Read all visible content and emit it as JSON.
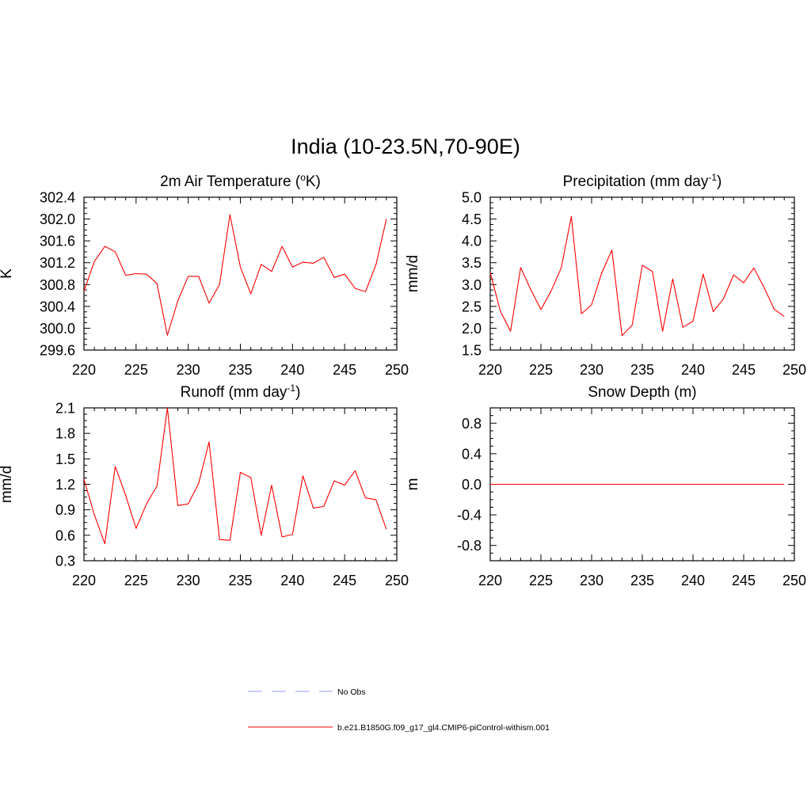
{
  "title": "India (10-23.5N,70-90E)",
  "colors": {
    "model": "#ff0000",
    "obs": "#9999ff",
    "frame": "#000000"
  },
  "legend": [
    {
      "label": "No Obs",
      "style": "dashed",
      "color": "#9999ff"
    },
    {
      "label": "b.e21.B1850G.f09_g17_gl4.CMIP6-piControl-withism.001",
      "style": "solid",
      "color": "#ff0000"
    }
  ],
  "chart_data": [
    {
      "type": "line",
      "title_main": "2m Air Temperature (",
      "title_sup": "o",
      "title_tail": "K)",
      "ylabel": "K",
      "xlim": [
        220,
        250
      ],
      "ylim": [
        299.6,
        302.4
      ],
      "xticks": [
        "220",
        "225",
        "230",
        "235",
        "240",
        "245",
        "250"
      ],
      "yticks": [
        "299.6",
        "300.0",
        "300.4",
        "300.8",
        "301.2",
        "301.6",
        "302.0",
        "302.4"
      ],
      "series": [
        {
          "x": [
            220,
            221,
            222,
            223,
            224,
            225,
            226,
            227,
            228,
            229,
            230,
            231,
            232,
            233,
            234,
            235,
            236,
            237,
            238,
            239,
            240,
            241,
            242,
            243,
            244,
            245,
            246,
            247,
            248,
            249
          ],
          "values": [
            300.68,
            301.22,
            301.5,
            301.4,
            300.97,
            301.0,
            300.99,
            300.82,
            299.87,
            300.5,
            300.95,
            300.95,
            300.46,
            300.8,
            302.08,
            301.12,
            300.63,
            301.17,
            301.04,
            301.5,
            301.12,
            301.21,
            301.19,
            301.3,
            300.93,
            300.99,
            300.73,
            300.67,
            301.16,
            302.0
          ]
        }
      ]
    },
    {
      "type": "line",
      "title_main": "Precipitation (mm day",
      "title_sup": "-1",
      "title_tail": ")",
      "ylabel": "mm/d",
      "xlim": [
        220,
        250
      ],
      "ylim": [
        1.5,
        5.0
      ],
      "xticks": [
        "220",
        "225",
        "230",
        "235",
        "240",
        "245",
        "250"
      ],
      "yticks": [
        "1.5",
        "2.0",
        "2.5",
        "3.0",
        "3.5",
        "4.0",
        "4.5",
        "5.0"
      ],
      "series": [
        {
          "x": [
            220,
            221,
            222,
            223,
            224,
            225,
            226,
            227,
            228,
            229,
            230,
            231,
            232,
            233,
            234,
            235,
            236,
            237,
            238,
            239,
            240,
            241,
            242,
            243,
            244,
            245,
            246,
            247,
            248,
            249
          ],
          "values": [
            3.27,
            2.39,
            1.93,
            3.39,
            2.88,
            2.43,
            2.85,
            3.38,
            4.56,
            2.33,
            2.54,
            3.27,
            3.79,
            1.83,
            2.07,
            3.44,
            3.3,
            1.93,
            3.13,
            2.02,
            2.16,
            3.24,
            2.38,
            2.67,
            3.22,
            3.04,
            3.38,
            2.94,
            2.44,
            2.27
          ]
        }
      ]
    },
    {
      "type": "line",
      "title_main": "Runoff (mm day",
      "title_sup": "-1",
      "title_tail": ")",
      "ylabel": "mm/d",
      "xlim": [
        220,
        250
      ],
      "ylim": [
        0.3,
        2.1
      ],
      "xticks": [
        "220",
        "225",
        "230",
        "235",
        "240",
        "245",
        "250"
      ],
      "yticks": [
        "0.3",
        "0.6",
        "0.9",
        "1.2",
        "1.5",
        "1.8",
        "2.1"
      ],
      "series": [
        {
          "x": [
            220,
            221,
            222,
            223,
            224,
            225,
            226,
            227,
            228,
            229,
            230,
            231,
            232,
            233,
            234,
            235,
            236,
            237,
            238,
            239,
            240,
            241,
            242,
            243,
            244,
            245,
            246,
            247,
            248,
            249
          ],
          "values": [
            1.26,
            0.84,
            0.5,
            1.41,
            1.07,
            0.68,
            0.97,
            1.18,
            2.1,
            0.95,
            0.97,
            1.21,
            1.7,
            0.55,
            0.54,
            1.34,
            1.28,
            0.6,
            1.19,
            0.58,
            0.61,
            1.3,
            0.92,
            0.94,
            1.24,
            1.19,
            1.36,
            1.04,
            1.02,
            0.67
          ]
        }
      ]
    },
    {
      "type": "line",
      "title_main": "Snow Depth (m)",
      "title_sup": "",
      "title_tail": "",
      "ylabel": "m",
      "xlim": [
        220,
        250
      ],
      "ylim": [
        -1.0,
        1.0
      ],
      "xticks": [
        "220",
        "225",
        "230",
        "235",
        "240",
        "245",
        "250"
      ],
      "yticks": [
        "-0.8",
        "-0.4",
        "0.0",
        "0.4",
        "0.8"
      ],
      "yticks_values": [
        -0.8,
        -0.4,
        0.0,
        0.4,
        0.8
      ],
      "series": [
        {
          "x": [
            220,
            249
          ],
          "values": [
            0.0,
            0.0
          ]
        }
      ]
    }
  ]
}
